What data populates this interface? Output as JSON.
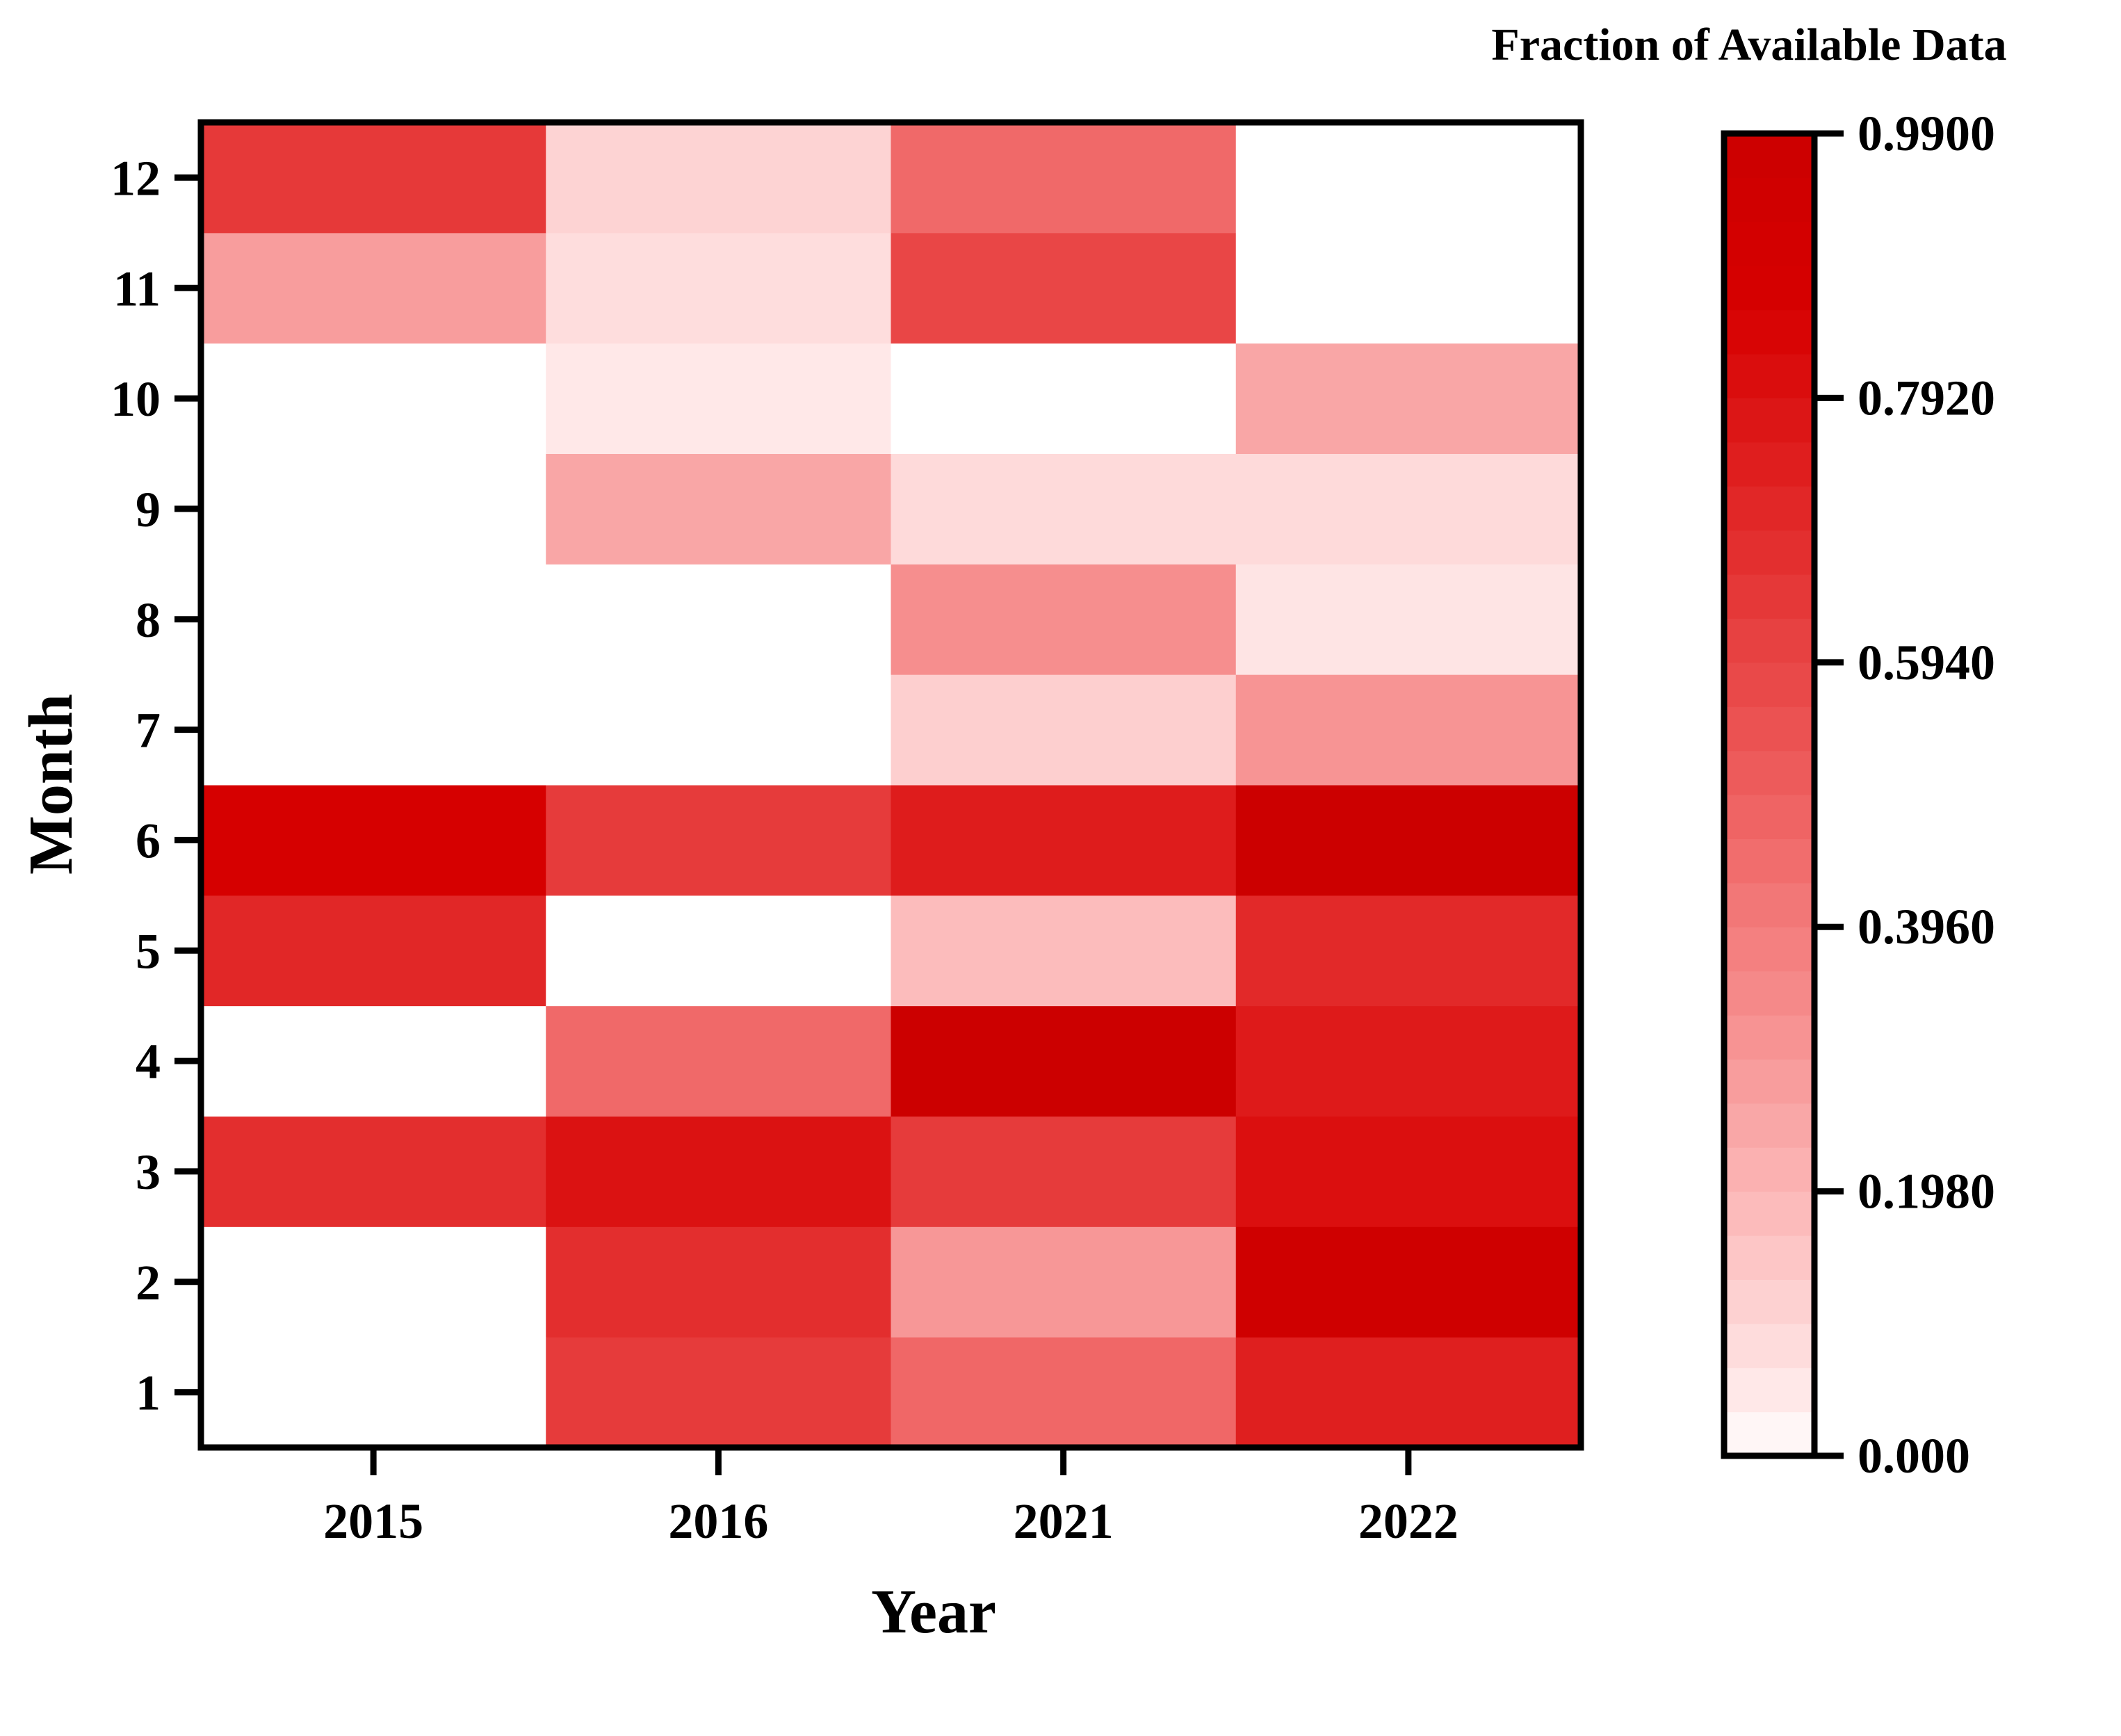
{
  "chart_data": {
    "type": "heatmap",
    "xlabel": "Year",
    "ylabel": "Month",
    "x_categories": [
      "2015",
      "2016",
      "2021",
      "2022"
    ],
    "y_categories": [
      "1",
      "2",
      "3",
      "4",
      "5",
      "6",
      "7",
      "8",
      "9",
      "10",
      "11",
      "12"
    ],
    "values": [
      [
        0.0,
        0.63,
        0.47,
        0.74
      ],
      [
        0.0,
        0.68,
        0.3,
        0.95
      ],
      [
        0.68,
        0.79,
        0.63,
        0.8
      ],
      [
        0.0,
        0.46,
        0.99,
        0.76
      ],
      [
        0.71,
        0.0,
        0.18,
        0.7
      ],
      [
        0.87,
        0.63,
        0.75,
        0.99
      ],
      [
        0.0,
        0.0,
        0.12,
        0.31
      ],
      [
        0.0,
        0.0,
        0.33,
        0.06
      ],
      [
        0.0,
        0.25,
        0.09,
        0.09
      ],
      [
        0.0,
        0.05,
        0.0,
        0.25
      ],
      [
        0.28,
        0.08,
        0.59,
        0.0
      ],
      [
        0.64,
        0.11,
        0.46,
        0.0
      ]
    ],
    "colorbar": {
      "title": "Fraction of Available Data",
      "min": 0.0,
      "max": 0.99,
      "ticks": [
        "0.000",
        "0.1980",
        "0.3960",
        "0.5940",
        "0.7920",
        "0.9900"
      ],
      "color_low": "#ffffff",
      "color_high": "#cc0000",
      "levels": 30
    }
  }
}
